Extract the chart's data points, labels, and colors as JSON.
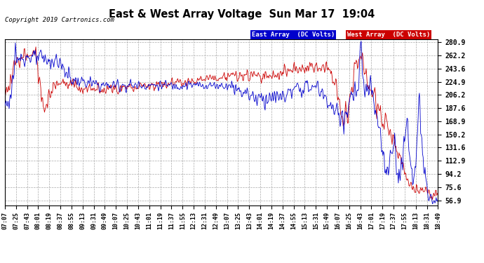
{
  "title": "East & West Array Voltage  Sun Mar 17  19:04",
  "copyright": "Copyright 2019 Cartronics.com",
  "legend_east": "East Array  (DC Volts)",
  "legend_west": "West Array  (DC Volts)",
  "east_color": "#0000cc",
  "west_color": "#cc0000",
  "background_color": "#ffffff",
  "plot_bg_color": "#ffffff",
  "grid_color": "#aaaaaa",
  "yticks": [
    56.9,
    75.6,
    94.2,
    112.9,
    131.6,
    150.2,
    168.9,
    187.6,
    206.2,
    224.9,
    243.6,
    262.2,
    280.9
  ],
  "ylim": [
    50.0,
    285.0
  ],
  "x_labels": [
    "07:07",
    "07:25",
    "07:43",
    "08:01",
    "08:19",
    "08:37",
    "08:55",
    "09:13",
    "09:31",
    "09:49",
    "10:07",
    "10:25",
    "10:43",
    "11:01",
    "11:19",
    "11:37",
    "11:55",
    "12:13",
    "12:31",
    "12:49",
    "13:07",
    "13:25",
    "13:43",
    "14:01",
    "14:19",
    "14:37",
    "14:55",
    "15:13",
    "15:31",
    "15:49",
    "16:07",
    "16:25",
    "16:43",
    "17:01",
    "17:19",
    "17:37",
    "17:55",
    "18:13",
    "18:31",
    "18:49"
  ]
}
